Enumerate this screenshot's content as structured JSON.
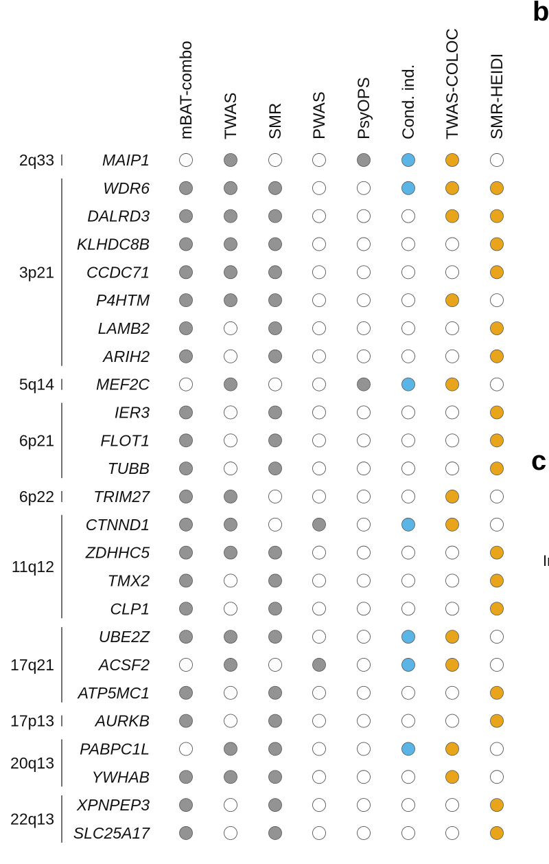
{
  "chart_data": {
    "type": "table",
    "columns": [
      "mBAT-combo",
      "TWAS",
      "SMR",
      "PWAS",
      "PsyOPS",
      "Cond. ind.",
      "TWAS-COLOC",
      "SMR-HEIDI"
    ],
    "regions": [
      {
        "label": "2q33",
        "genes": [
          "MAIP1"
        ]
      },
      {
        "label": "3p21",
        "genes": [
          "WDR6",
          "DALRD3",
          "KLHDC8B",
          "CCDC71",
          "P4HTM",
          "LAMB2",
          "ARIH2"
        ]
      },
      {
        "label": "5q14",
        "genes": [
          "MEF2C"
        ]
      },
      {
        "label": "6p21",
        "genes": [
          "IER3",
          "FLOT1",
          "TUBB"
        ]
      },
      {
        "label": "6p22",
        "genes": [
          "TRIM27"
        ]
      },
      {
        "label": "11q12",
        "genes": [
          "CTNND1",
          "ZDHHC5",
          "TMX2",
          "CLP1"
        ]
      },
      {
        "label": "17q21",
        "genes": [
          "UBE2Z",
          "ACSF2",
          "ATP5MC1"
        ]
      },
      {
        "label": "17p13",
        "genes": [
          "AURKB"
        ]
      },
      {
        "label": "20q13",
        "genes": [
          "PABPC1L",
          "YWHAB"
        ]
      },
      {
        "label": "22q13",
        "genes": [
          "XPNPEP3",
          "SLC25A17"
        ]
      }
    ],
    "genes": [
      "MAIP1",
      "WDR6",
      "DALRD3",
      "KLHDC8B",
      "CCDC71",
      "P4HTM",
      "LAMB2",
      "ARIH2",
      "MEF2C",
      "IER3",
      "FLOT1",
      "TUBB",
      "TRIM27",
      "CTNND1",
      "ZDHHC5",
      "TMX2",
      "CLP1",
      "UBE2Z",
      "ACSF2",
      "ATP5MC1",
      "AURKB",
      "PABPC1L",
      "YWHAB",
      "XPNPEP3",
      "SLC25A17"
    ],
    "matrix": [
      [
        0,
        1,
        0,
        0,
        1,
        1,
        1,
        0
      ],
      [
        1,
        1,
        1,
        0,
        0,
        1,
        1,
        1
      ],
      [
        1,
        1,
        1,
        0,
        0,
        0,
        1,
        1
      ],
      [
        1,
        1,
        1,
        0,
        0,
        0,
        0,
        1
      ],
      [
        1,
        1,
        1,
        0,
        0,
        0,
        0,
        1
      ],
      [
        1,
        1,
        1,
        0,
        0,
        0,
        1,
        0
      ],
      [
        1,
        0,
        1,
        0,
        0,
        0,
        0,
        1
      ],
      [
        1,
        0,
        1,
        0,
        0,
        0,
        0,
        1
      ],
      [
        0,
        1,
        0,
        0,
        1,
        1,
        1,
        0
      ],
      [
        1,
        0,
        1,
        0,
        0,
        0,
        0,
        1
      ],
      [
        1,
        0,
        1,
        0,
        0,
        0,
        0,
        1
      ],
      [
        1,
        0,
        1,
        0,
        0,
        0,
        0,
        1
      ],
      [
        1,
        1,
        0,
        0,
        0,
        0,
        1,
        0
      ],
      [
        1,
        1,
        0,
        1,
        0,
        1,
        1,
        0
      ],
      [
        1,
        1,
        1,
        0,
        0,
        0,
        0,
        1
      ],
      [
        1,
        0,
        1,
        0,
        0,
        0,
        0,
        1
      ],
      [
        1,
        0,
        1,
        0,
        0,
        0,
        0,
        1
      ],
      [
        1,
        1,
        1,
        0,
        0,
        1,
        1,
        0
      ],
      [
        0,
        1,
        0,
        1,
        0,
        1,
        1,
        0
      ],
      [
        1,
        0,
        1,
        0,
        0,
        0,
        0,
        1
      ],
      [
        1,
        0,
        1,
        0,
        0,
        0,
        0,
        1
      ],
      [
        0,
        1,
        1,
        0,
        0,
        1,
        1,
        0
      ],
      [
        1,
        1,
        1,
        0,
        0,
        0,
        1,
        0
      ],
      [
        1,
        0,
        1,
        0,
        0,
        0,
        0,
        1
      ],
      [
        1,
        0,
        1,
        0,
        0,
        0,
        0,
        1
      ]
    ],
    "colors": {
      "mBAT-combo": "#939393",
      "TWAS": "#939393",
      "SMR": "#939393",
      "PWAS": "#939393",
      "PsyOPS": "#939393",
      "Cond. ind.": "#5ab4e5",
      "TWAS-COLOC": "#e8a51c",
      "SMR-HEIDI": "#e8a51c",
      "empty": "#ffffff",
      "outline": "#555555"
    }
  },
  "side_panels": {
    "b": {
      "letter": "b"
    },
    "c": {
      "letter": "c",
      "fragment": "In"
    }
  }
}
